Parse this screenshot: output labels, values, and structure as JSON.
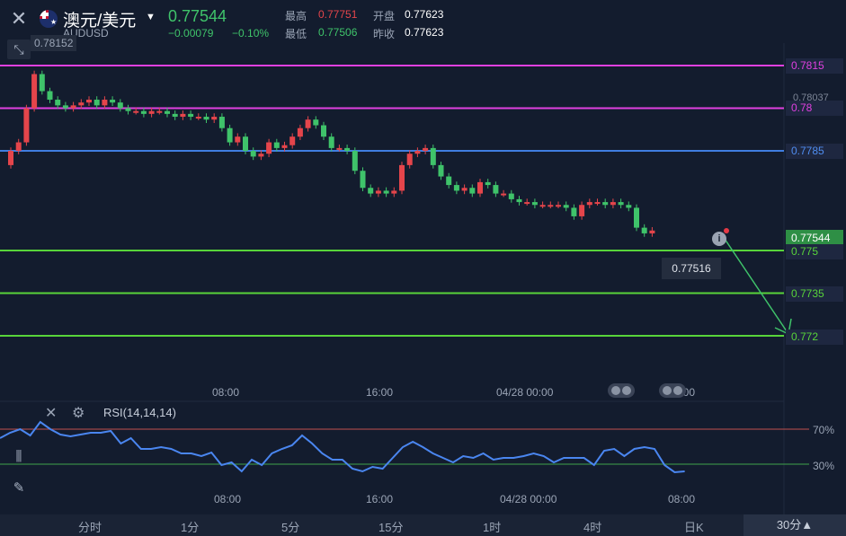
{
  "header": {
    "pair_name": "澳元/美元",
    "pair_code": "AUDUSD",
    "last_price": "0.77544",
    "change": "−0.00079",
    "change_pct": "−0.10%",
    "high_label": "最高",
    "high_value": "0.77751",
    "low_label": "最低",
    "low_value": "0.77506",
    "open_label": "开盘",
    "open_value": "0.77623",
    "prev_close_label": "昨收",
    "prev_close_value": "0.77623"
  },
  "chart_labels": {
    "high_marker": "0.78152",
    "low_marker": "0.77516",
    "right_axis_value": "0.78037",
    "current_price_tag": "0.77544"
  },
  "levels": [
    {
      "value": "0.7815",
      "color": "#e040e0"
    },
    {
      "value": "0.78",
      "color": "#e040e0"
    },
    {
      "value": "0.7785",
      "color": "#3f7de0"
    },
    {
      "value": "0.775",
      "color": "#58d43a"
    },
    {
      "value": "0.7735",
      "color": "#58d43a"
    },
    {
      "value": "0.772",
      "color": "#58d43a"
    }
  ],
  "x_axis": {
    "main": [
      "08:00",
      "16:00",
      "04/28 00:00",
      "08:00"
    ],
    "rsi": [
      "08:00",
      "16:00",
      "04/28 00:00",
      "08:00"
    ]
  },
  "rsi": {
    "title": "RSI(14,14,14)",
    "levels": [
      "70%",
      "30%"
    ]
  },
  "timeframes": [
    "分时",
    "1分",
    "5分",
    "15分",
    "1时",
    "4时",
    "日K"
  ],
  "active_timeframe": "30分▲",
  "colors": {
    "up": "#e5454b",
    "down": "#3fc36a",
    "accent": "#3f7de0",
    "background": "#131c2e"
  }
}
